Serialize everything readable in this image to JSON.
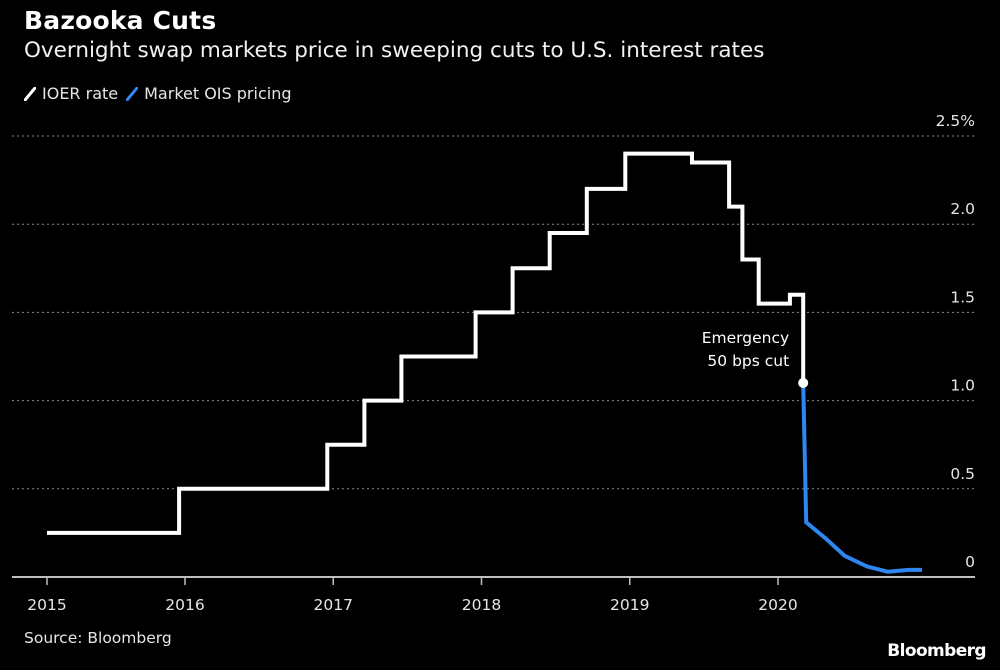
{
  "header": {
    "title": "Bazooka Cuts",
    "subtitle": "Overnight swap markets price in sweeping cuts to U.S. interest rates"
  },
  "footer": {
    "source": "Source: Bloomberg",
    "brand": "Bloomberg"
  },
  "chart_data": {
    "type": "line",
    "title": "Bazooka Cuts",
    "subtitle": "Overnight swap markets price in sweeping cuts to U.S. interest rates",
    "xlabel": "",
    "ylabel": "",
    "x_type": "year",
    "xlim": [
      2015.0,
      2021.0
    ],
    "ylim": [
      0,
      2.5
    ],
    "y_unit_suffix": "%",
    "x_ticks": [
      2015,
      2016,
      2017,
      2018,
      2019,
      2020
    ],
    "x_tick_labels": [
      "2015",
      "2016",
      "2017",
      "2018",
      "2019",
      "2020"
    ],
    "y_ticks": [
      0,
      0.5,
      1.0,
      1.5,
      2.0,
      2.5
    ],
    "y_tick_labels": [
      "0",
      "0.5",
      "1.0",
      "1.5",
      "2.0",
      "2.5%"
    ],
    "grid": "horizontal-dotted",
    "legend_position": "top-left",
    "series": [
      {
        "name": "IOER rate",
        "color": "#ffffff",
        "step": true,
        "x": [
          2015.0,
          2015.96,
          2015.96,
          2016.96,
          2016.96,
          2017.21,
          2017.21,
          2017.46,
          2017.46,
          2017.96,
          2017.96,
          2018.21,
          2018.21,
          2018.46,
          2018.46,
          2018.71,
          2018.71,
          2018.97,
          2018.97,
          2019.42,
          2019.42,
          2019.67,
          2019.67,
          2019.76,
          2019.76,
          2019.87,
          2019.87,
          2020.08,
          2020.08,
          2020.17,
          2020.17
        ],
        "y": [
          0.25,
          0.25,
          0.5,
          0.5,
          0.75,
          0.75,
          1.0,
          1.0,
          1.25,
          1.25,
          1.5,
          1.5,
          1.75,
          1.75,
          1.95,
          1.95,
          2.2,
          2.2,
          2.4,
          2.4,
          2.35,
          2.35,
          2.1,
          2.1,
          1.8,
          1.8,
          1.55,
          1.55,
          1.6,
          1.6,
          1.1
        ]
      },
      {
        "name": "Market OIS pricing",
        "color": "#2e86f0",
        "step": true,
        "x": [
          2020.17,
          2020.19,
          2020.19,
          2020.32,
          2020.32,
          2020.45,
          2020.45,
          2020.6,
          2020.6,
          2020.74,
          2020.74,
          2020.88,
          2020.88,
          2021.0
        ],
        "y": [
          1.1,
          0.31,
          0.31,
          0.22,
          0.22,
          0.12,
          0.12,
          0.06,
          0.06,
          0.03,
          0.03,
          0.04,
          0.04,
          0.04
        ]
      }
    ],
    "annotations": [
      {
        "text_lines": [
          "Emergency",
          "50 bps cut"
        ],
        "x": 2020.17,
        "y": 1.1,
        "marker": "dot"
      }
    ]
  }
}
